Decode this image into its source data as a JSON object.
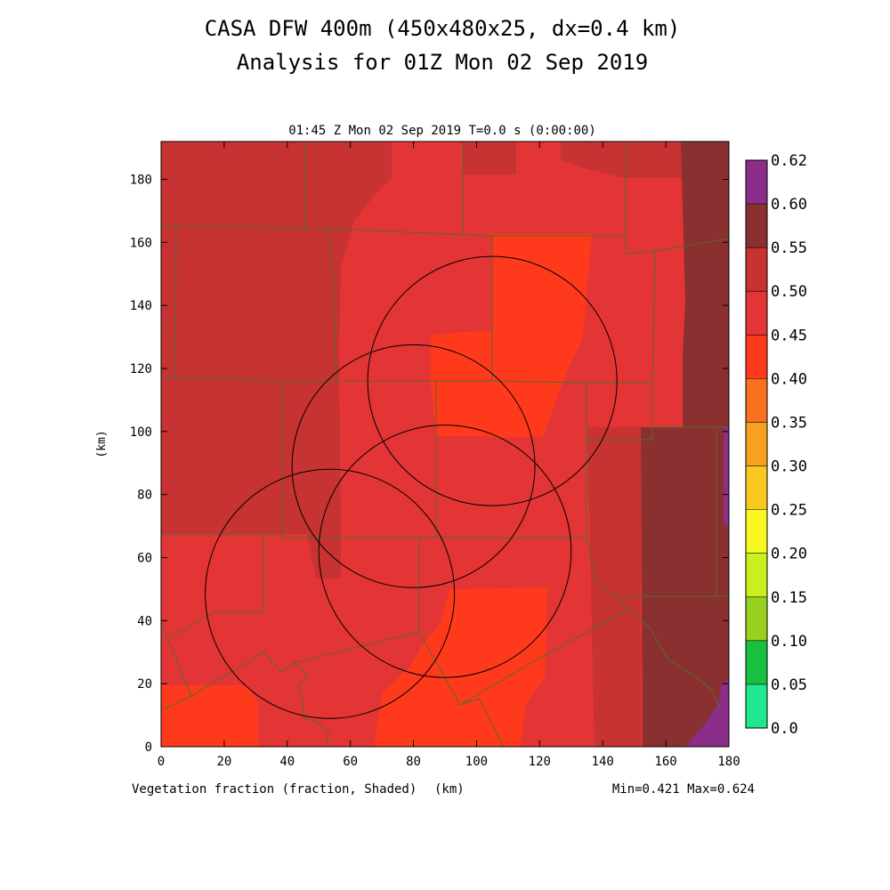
{
  "header": {
    "title_line1": "CASA DFW 400m (450x480x25, dx=0.4 km)",
    "title_line2": "Analysis for 01Z Mon 02 Sep 2019",
    "subtitle": "01:45 Z Mon 02 Sep 2019    T=0.0 s (0:00:00)"
  },
  "footer": {
    "field_label": "Vegetation fraction (fraction, Shaded)",
    "x_unit": "(km)",
    "minmax": "Min=0.421 Max=0.624"
  },
  "chart_data": {
    "type": "heatmap",
    "xlabel": "(km)",
    "ylabel": "(km)",
    "xlim": [
      0,
      180
    ],
    "ylim": [
      0,
      192
    ],
    "x_ticks": [
      0,
      20,
      40,
      60,
      80,
      100,
      120,
      140,
      160,
      180
    ],
    "y_ticks": [
      0,
      20,
      40,
      60,
      80,
      100,
      120,
      140,
      160,
      180
    ],
    "colorbar": {
      "labels": [
        "0.0",
        "0.05",
        "0.10",
        "0.15",
        "0.20",
        "0.25",
        "0.30",
        "0.35",
        "0.40",
        "0.45",
        "0.50",
        "0.55",
        "0.60",
        "0.62"
      ],
      "colors": [
        "#20e890",
        "#18c040",
        "#98d020",
        "#c8f020",
        "#f8f820",
        "#f8c820",
        "#f8a020",
        "#f87020",
        "#ff3a1c",
        "#e33535",
        "#c73232",
        "#8b3030",
        "#8a2e8a"
      ]
    },
    "value_colors": {
      "v040_045": "#ff3a1c",
      "v045_050": "#e33535",
      "v050_055": "#c73232",
      "v055_060": "#8b3030",
      "v060_062": "#8a2e8a"
    },
    "radar_rings": [
      {
        "center": [
          105,
          116
        ],
        "radius_km": 39.5
      },
      {
        "center": [
          80,
          89
        ],
        "radius_km": 38.5
      },
      {
        "center": [
          90,
          62
        ],
        "radius_km": 40
      },
      {
        "center": [
          53.5,
          48.5
        ],
        "radius_km": 39.5
      }
    ],
    "colors": {
      "county_lines": "#556b2f",
      "ring_lines": "#000000"
    }
  }
}
